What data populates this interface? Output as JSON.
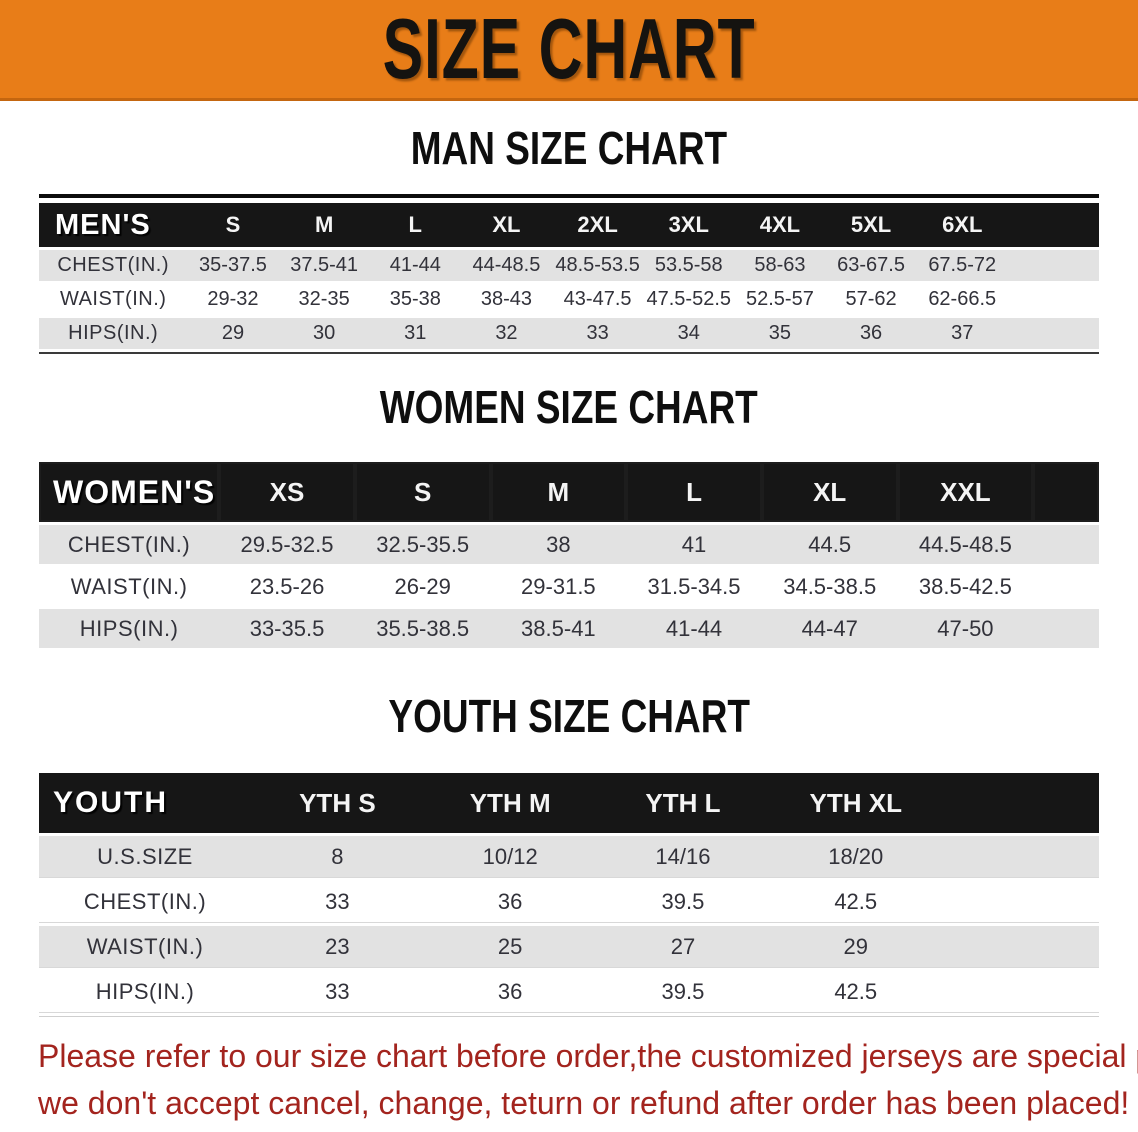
{
  "banner": {
    "title": "SIZE CHART"
  },
  "sections": [
    {
      "id": "men",
      "heading": "MAN SIZE CHART",
      "header_label": "MEN'S",
      "columns": [
        "S",
        "M",
        "L",
        "XL",
        "2XL",
        "3XL",
        "4XL",
        "5XL",
        "6XL"
      ],
      "rows": [
        {
          "label": "CHEST(IN.)",
          "values": [
            "35-37.5",
            "37.5-41",
            "41-44",
            "44-48.5",
            "48.5-53.5",
            "53.5-58",
            "58-63",
            "63-67.5",
            "67.5-72"
          ]
        },
        {
          "label": "WAIST(IN.)",
          "values": [
            "29-32",
            "32-35",
            "35-38",
            "38-43",
            "43-47.5",
            "47.5-52.5",
            "52.5-57",
            "57-62",
            "62-66.5"
          ]
        },
        {
          "label": "HIPS(IN.)",
          "values": [
            "29",
            "30",
            "31",
            "32",
            "33",
            "34",
            "35",
            "36",
            "37"
          ]
        }
      ]
    },
    {
      "id": "women",
      "heading": "WOMEN SIZE CHART",
      "header_label": "WOMEN'S",
      "columns": [
        "XS",
        "S",
        "M",
        "L",
        "XL",
        "XXL"
      ],
      "rows": [
        {
          "label": "CHEST(IN.)",
          "values": [
            "29.5-32.5",
            "32.5-35.5",
            "38",
            "41",
            "44.5",
            "44.5-48.5"
          ]
        },
        {
          "label": "WAIST(IN.)",
          "values": [
            "23.5-26",
            "26-29",
            "29-31.5",
            "31.5-34.5",
            "34.5-38.5",
            "38.5-42.5"
          ]
        },
        {
          "label": "HIPS(IN.)",
          "values": [
            "33-35.5",
            "35.5-38.5",
            "38.5-41",
            "41-44",
            "44-47",
            "47-50"
          ]
        }
      ]
    },
    {
      "id": "youth",
      "heading": "YOUTH SIZE CHART",
      "header_label": "YOUTH",
      "columns": [
        "YTH S",
        "YTH M",
        "YTH L",
        "YTH XL"
      ],
      "rows": [
        {
          "label": "U.S.SIZE",
          "values": [
            "8",
            "10/12",
            "14/16",
            "18/20"
          ]
        },
        {
          "label": "CHEST(IN.)",
          "values": [
            "33",
            "36",
            "39.5",
            "42.5"
          ]
        },
        {
          "label": "WAIST(IN.)",
          "values": [
            "23",
            "25",
            "27",
            "29"
          ]
        },
        {
          "label": "HIPS(IN.)",
          "values": [
            "33",
            "36",
            "39.5",
            "42.5"
          ]
        }
      ]
    }
  ],
  "footer": {
    "line1": "Please refer to our size chart before order,the customized jerseys are special products,",
    "line2": "we don't accept cancel, change, teturn or refund after order has been placed!"
  },
  "colors": {
    "banner_orange": "#e87d18",
    "header_black": "#161616",
    "row_gray": "#e2e2e2",
    "note_red": "#a3241e"
  }
}
